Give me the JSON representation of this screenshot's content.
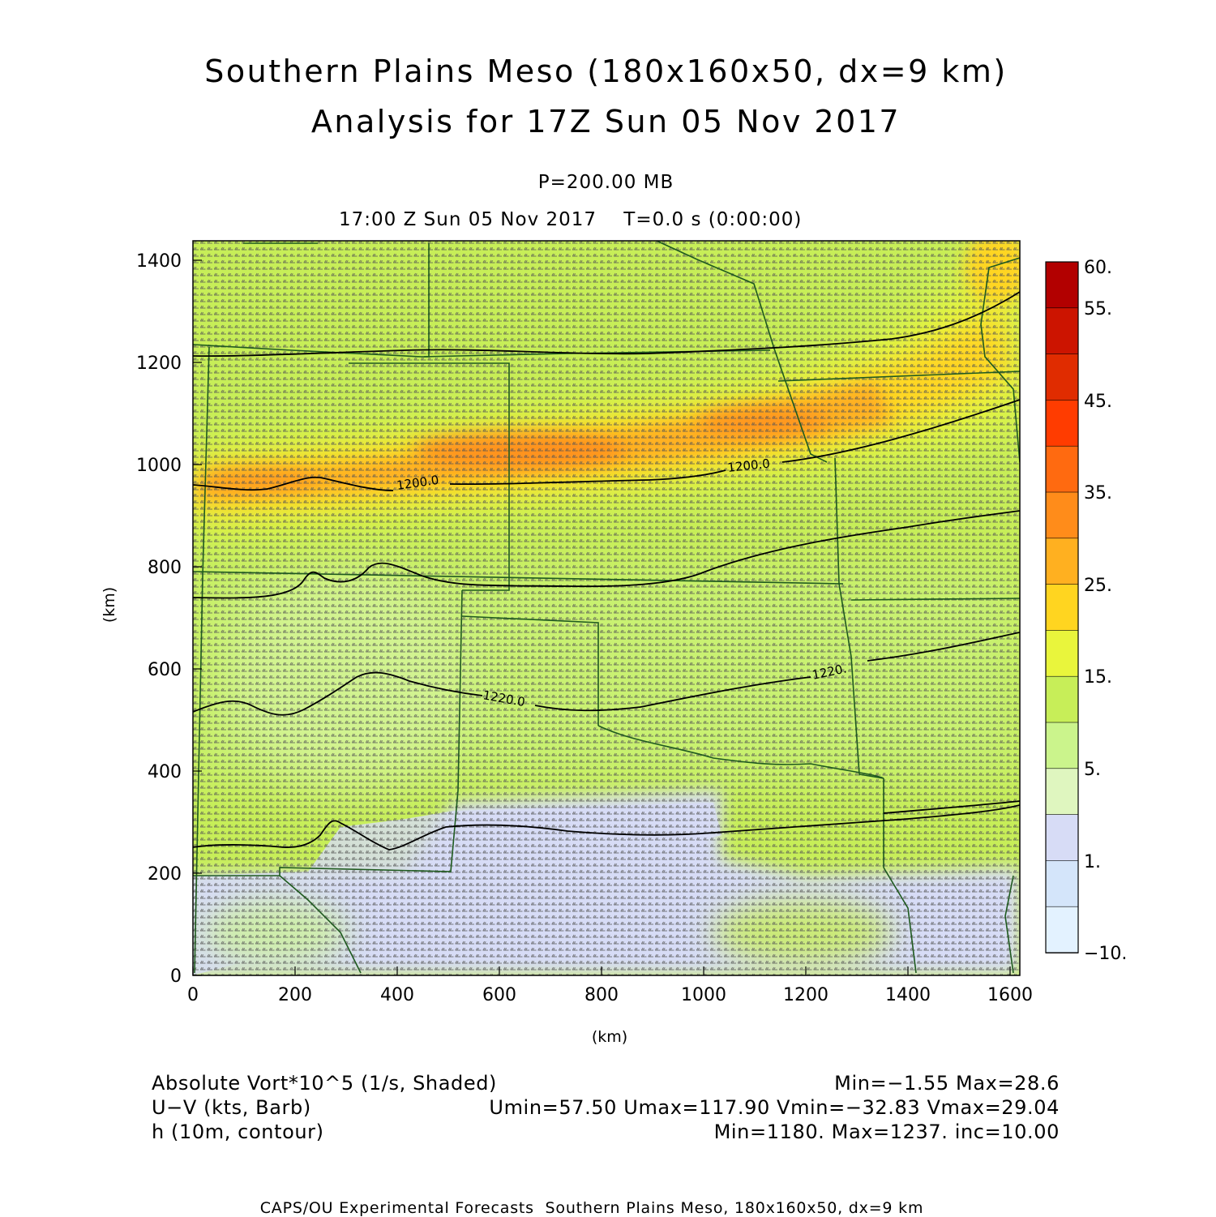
{
  "title": {
    "line1": "Southern Plains Meso (180x160x50, dx=9 km)",
    "line2": "Analysis for 17Z Sun 05 Nov 2017"
  },
  "subtitle": {
    "pressure": "P=200.00 MB",
    "time": "17:00 Z Sun 05 Nov 2017    T=0.0 s (0:00:00)"
  },
  "axes": {
    "x_label": "(km)",
    "y_label": "(km)",
    "x_ticks": [
      "0",
      "200",
      "400",
      "600",
      "800",
      "1000",
      "1200",
      "1400",
      "1600"
    ],
    "y_ticks": [
      "0",
      "200",
      "400",
      "600",
      "800",
      "1000",
      "1200",
      "1400"
    ],
    "x_range_km": [
      0,
      1620
    ],
    "y_range_km": [
      0,
      1440
    ]
  },
  "colorbar": {
    "labels": [
      "60.",
      "55.",
      "45.",
      "35.",
      "25.",
      "15.",
      "5.",
      "1.",
      "−10."
    ],
    "colors": [
      "#b20000",
      "#cc1400",
      "#e02c00",
      "#ff3c00",
      "#ff6a10",
      "#ff8c1a",
      "#ffb020",
      "#ffd520",
      "#e9f53c",
      "#c7ee58",
      "#cbf48c",
      "#dff6bf",
      "#d7dcf6",
      "#d4e5fa",
      "#e3f2ff"
    ]
  },
  "contour_labels": [
    "1200.0",
    "1200.0",
    "1220.0",
    "1220."
  ],
  "field_info": {
    "left": [
      "Absolute Vort*10^5 (1/s, Shaded)",
      "U−V (kts, Barb)",
      "h (10m, contour)"
    ],
    "right": [
      "Min=−1.55 Max=28.6",
      "Umin=57.50 Umax=117.90 Vmin=−32.83 Vmax=29.04",
      "Min=1180. Max=1237. inc=10.00"
    ]
  },
  "footer": "CAPS/OU Experimental Forecasts  Southern Plains Meso, 180x160x50, dx=9 km",
  "chart_data": {
    "type": "heatmap",
    "title": "Southern Plains Meso (180x160x50, dx=9 km)",
    "field": "Absolute Vort*10^5 (1/s, Shaded)",
    "vort_min": -1.55,
    "vort_max": 28.6,
    "wind": {
      "umin": 57.5,
      "umax": 117.9,
      "vmin": -32.83,
      "vmax": 29.04,
      "units": "kts"
    },
    "height_contours": {
      "min": 1180,
      "max": 1237,
      "inc": 10.0,
      "units": "10m"
    },
    "color_levels": [
      -10,
      1,
      5,
      15,
      25,
      35,
      45,
      55,
      60
    ]
  }
}
